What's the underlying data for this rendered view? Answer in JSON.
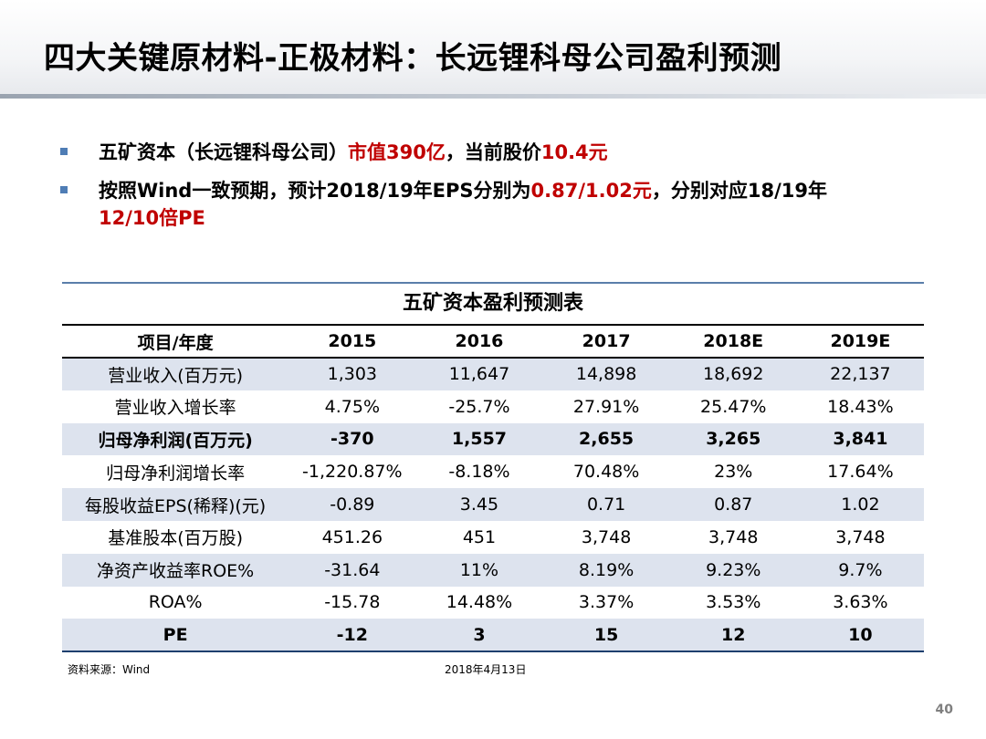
{
  "title": "四大关键原材料-正极材料：长远锂科母公司盈利预测",
  "bullets": [
    {
      "pre": "五矿资本（长远锂科母公司）",
      "red": "市值390亿",
      "mid": "，当前股价",
      "red2": "10.4元",
      "post": ""
    },
    {
      "pre": "按照Wind一致预期，预计2018/19年EPS分别为",
      "red": "0.87/1.02元",
      "mid": "，分别对应18/19年",
      "red2": "12/10倍PE",
      "post": ""
    }
  ],
  "table": {
    "caption": "五矿资本盈利预测表",
    "headers": [
      "项目/年度",
      "2015",
      "2016",
      "2017",
      "2018E",
      "2019E"
    ],
    "rows": [
      {
        "cells": [
          "营业收入(百万元)",
          "1,303",
          "11,647",
          "14,898",
          "18,692",
          "22,137"
        ],
        "bold": false
      },
      {
        "cells": [
          "营业收入增长率",
          "4.75%",
          "-25.7%",
          "27.91%",
          "25.47%",
          "18.43%"
        ],
        "bold": false
      },
      {
        "cells": [
          "归母净利润(百万元)",
          "-370",
          "1,557",
          "2,655",
          "3,265",
          "3,841"
        ],
        "bold": true
      },
      {
        "cells": [
          "归母净利润增长率",
          "-1,220.87%",
          "-8.18%",
          "70.48%",
          "23%",
          "17.64%"
        ],
        "bold": false
      },
      {
        "cells": [
          "每股收益EPS(稀释)(元)",
          "-0.89",
          "3.45",
          "0.71",
          "0.87",
          "1.02"
        ],
        "bold": false
      },
      {
        "cells": [
          "基准股本(百万股)",
          "451.26",
          "451",
          "3,748",
          "3,748",
          "3,748"
        ],
        "bold": false
      },
      {
        "cells": [
          "净资产收益率ROE%",
          "-31.64",
          "11%",
          "8.19%",
          "9.23%",
          "9.7%"
        ],
        "bold": false
      },
      {
        "cells": [
          "ROA%",
          "-15.78",
          "14.48%",
          "3.37%",
          "3.53%",
          "3.63%"
        ],
        "bold": false
      },
      {
        "cells": [
          "PE",
          "-12",
          "3",
          "15",
          "12",
          "10"
        ],
        "bold": true
      }
    ]
  },
  "source": "资料来源：Wind",
  "date": "2018年4月13日",
  "page_number": "40",
  "colors": {
    "accent_red": "#c00000",
    "bullet_blue": "#4f7db5",
    "stripe": "#dde3ee"
  }
}
